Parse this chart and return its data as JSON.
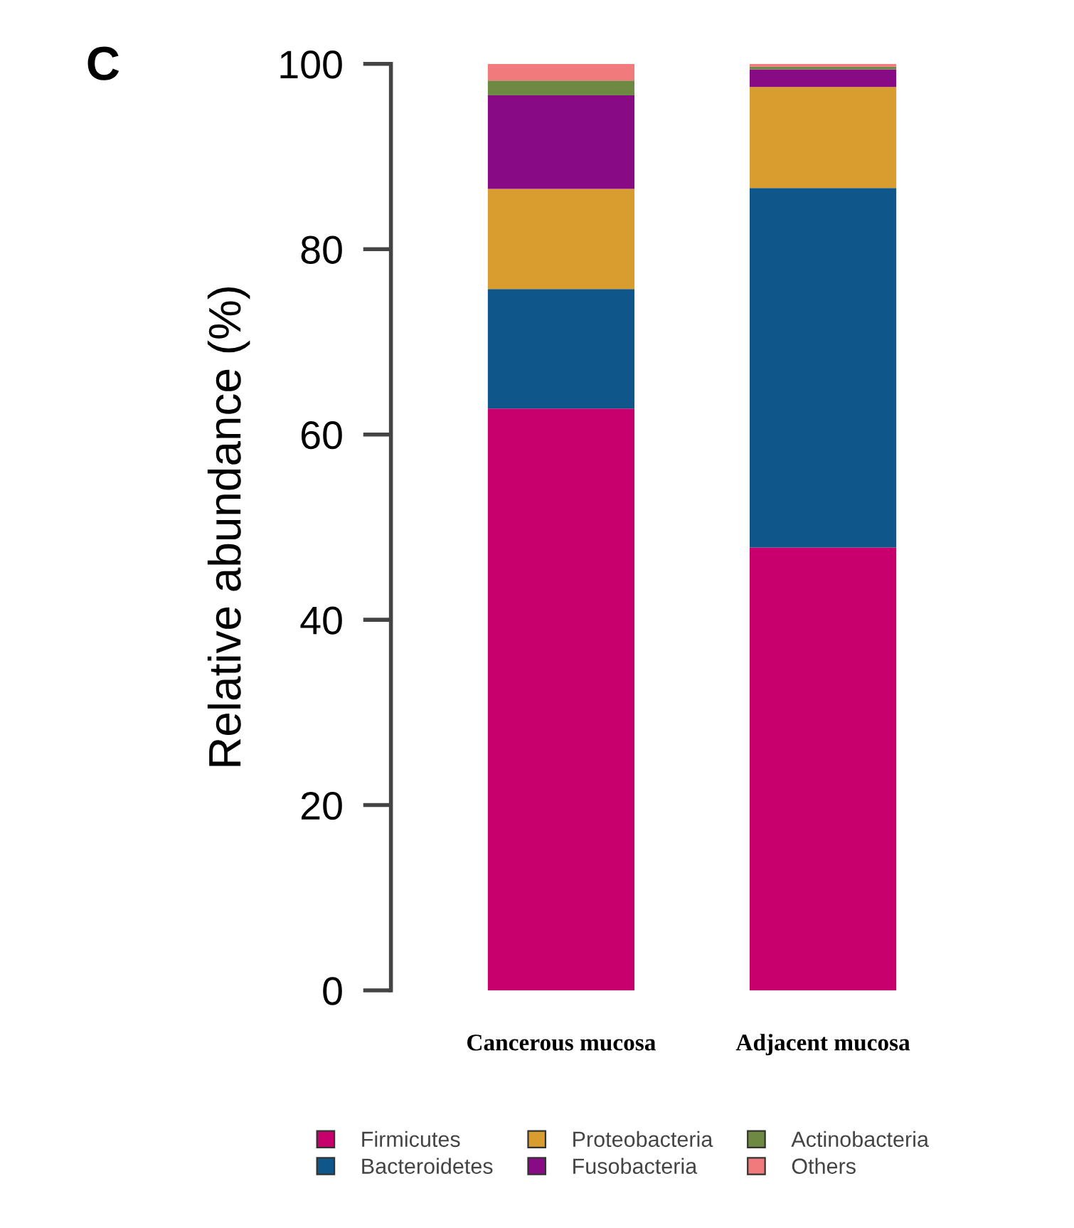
{
  "chart_data": {
    "type": "bar",
    "stacked": true,
    "ylabel": "Relative abundance (%)",
    "annotations": [
      "C"
    ],
    "categories": [
      "Cancerous mucosa",
      "Adjacent mucosa"
    ],
    "series": [
      {
        "name": "Firmicutes",
        "color": "#c8006e",
        "values": [
          62.8,
          47.8
        ]
      },
      {
        "name": "Bacteroidetes",
        "color": "#0f568b",
        "values": [
          12.9,
          38.8
        ]
      },
      {
        "name": "Proteobacteria",
        "color": "#d99d2f",
        "values": [
          10.8,
          10.9
        ]
      },
      {
        "name": "Fusobacteria",
        "color": "#890a85",
        "values": [
          10.1,
          1.9
        ]
      },
      {
        "name": "Actinobacteria",
        "color": "#6e8a42",
        "values": [
          1.6,
          0.3
        ]
      },
      {
        "name": "Others",
        "color": "#f07a7c",
        "values": [
          1.8,
          0.3
        ]
      }
    ],
    "ylim": [
      0,
      100
    ],
    "yticks": [
      0,
      20,
      40,
      60,
      80,
      100
    ],
    "grid": false,
    "legend": "bottom"
  }
}
